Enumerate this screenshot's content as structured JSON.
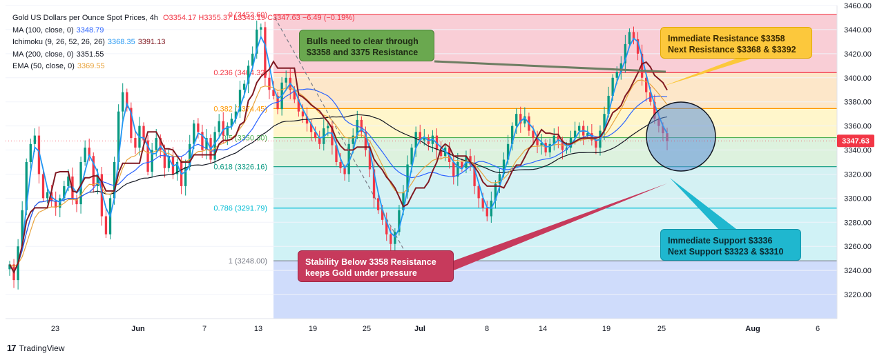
{
  "legend": {
    "title": "Gold US Dollars per Ounce Spot Prices, 4h",
    "ohlc": "O3354.17 H3355.37 L3343.19 C3347.63 −6.49 (−0.19%)",
    "indicators": [
      {
        "label": "MA (100, close, 0)",
        "values": [
          "3348.79"
        ],
        "colors": [
          "#2962ff"
        ]
      },
      {
        "label": "Ichimoku (9, 26, 52, 26, 26)",
        "values": [
          "3368.35",
          "3391.13"
        ],
        "colors": [
          "#2196f3",
          "#801922"
        ]
      },
      {
        "label": "MA (200, close, 0)",
        "values": [
          "3351.55"
        ],
        "colors": [
          "#131722"
        ]
      },
      {
        "label": "EMA (50, close, 0)",
        "values": [
          "3369.55"
        ],
        "colors": [
          "#e8a33d"
        ]
      }
    ]
  },
  "callouts": {
    "bulls": [
      "Bulls need to clear through",
      "$3358 and 3375 Resistance"
    ],
    "resistance": [
      "Immediate Resistance $3358",
      "Next Resistance $3368 & $3392"
    ],
    "stability": [
      "Stability Below 3358 Resistance",
      "keeps Gold under pressure"
    ],
    "support": [
      "Immediate Support $3336",
      "Next Support $3323 & $3310"
    ]
  },
  "price_tag": "3347.63",
  "logo": "TradingView",
  "colors": {
    "up": "#089981",
    "down": "#f23645",
    "price_tag": "#f23645"
  },
  "chart_data": {
    "type": "candlestick",
    "y_axis": {
      "min": 3200,
      "max": 3460,
      "ticks": [
        3220,
        3240,
        3260,
        3280,
        3300,
        3320,
        3340,
        3360,
        3380,
        3400,
        3420,
        3440,
        3460
      ]
    },
    "x_axis": {
      "labels": [
        "23",
        "Jun",
        "7",
        "13",
        "19",
        "25",
        "Jul",
        "8",
        "14",
        "19",
        "25",
        "Aug",
        "6"
      ]
    },
    "fibonacci": [
      {
        "label": "0 (3452.60)",
        "value": 3452.6,
        "color": "#f23645"
      },
      {
        "label": "0.236 (3404.32)",
        "value": 3404.32,
        "color": "#f23645"
      },
      {
        "label": "0.382 (3374.45)",
        "value": 3374.45,
        "color": "#ff9800"
      },
      {
        "label": "0.5 (3350.30)",
        "value": 3350.3,
        "color": "#4caf50"
      },
      {
        "label": "0.618 (3326.16)",
        "value": 3326.16,
        "color": "#089981"
      },
      {
        "label": "0.786 (3291.79)",
        "value": 3291.79,
        "color": "#00bcd4"
      },
      {
        "label": "1 (3248.00)",
        "value": 3248.0,
        "color": "#787b86"
      }
    ],
    "last_price": 3347.63,
    "close_series": [
      3245,
      3232,
      3260,
      3290,
      3330,
      3345,
      3352,
      3320,
      3300,
      3305,
      3298,
      3292,
      3300,
      3310,
      3318,
      3300,
      3295,
      3330,
      3342,
      3335,
      3310,
      3320,
      3285,
      3270,
      3300,
      3330,
      3372,
      3388,
      3375,
      3350,
      3342,
      3360,
      3348,
      3322,
      3340,
      3350,
      3340,
      3325,
      3335,
      3320,
      3330,
      3310,
      3326,
      3345,
      3362,
      3355,
      3340,
      3350,
      3332,
      3355,
      3364,
      3352,
      3360,
      3366,
      3372,
      3390,
      3395,
      3410,
      3420,
      3440,
      3442,
      3400,
      3390,
      3385,
      3374,
      3396,
      3400,
      3390,
      3382,
      3372,
      3368,
      3362,
      3355,
      3350,
      3345,
      3358,
      3360,
      3344,
      3330,
      3325,
      3320,
      3345,
      3352,
      3365,
      3355,
      3340,
      3324,
      3300,
      3290,
      3282,
      3270,
      3262,
      3272,
      3290,
      3305,
      3328,
      3342,
      3355,
      3348,
      3350,
      3345,
      3352,
      3340,
      3335,
      3342,
      3330,
      3318,
      3330,
      3325,
      3335,
      3328,
      3310,
      3300,
      3292,
      3285,
      3298,
      3312,
      3320,
      3332,
      3345,
      3360,
      3370,
      3362,
      3368,
      3356,
      3350,
      3344,
      3346,
      3338,
      3345,
      3352,
      3348,
      3340,
      3342,
      3350,
      3356,
      3360,
      3352,
      3354,
      3348,
      3342,
      3356,
      3370,
      3385,
      3400,
      3405,
      3412,
      3428,
      3438,
      3432,
      3420,
      3400,
      3388,
      3380,
      3366,
      3360,
      3354,
      3347.63
    ]
  }
}
